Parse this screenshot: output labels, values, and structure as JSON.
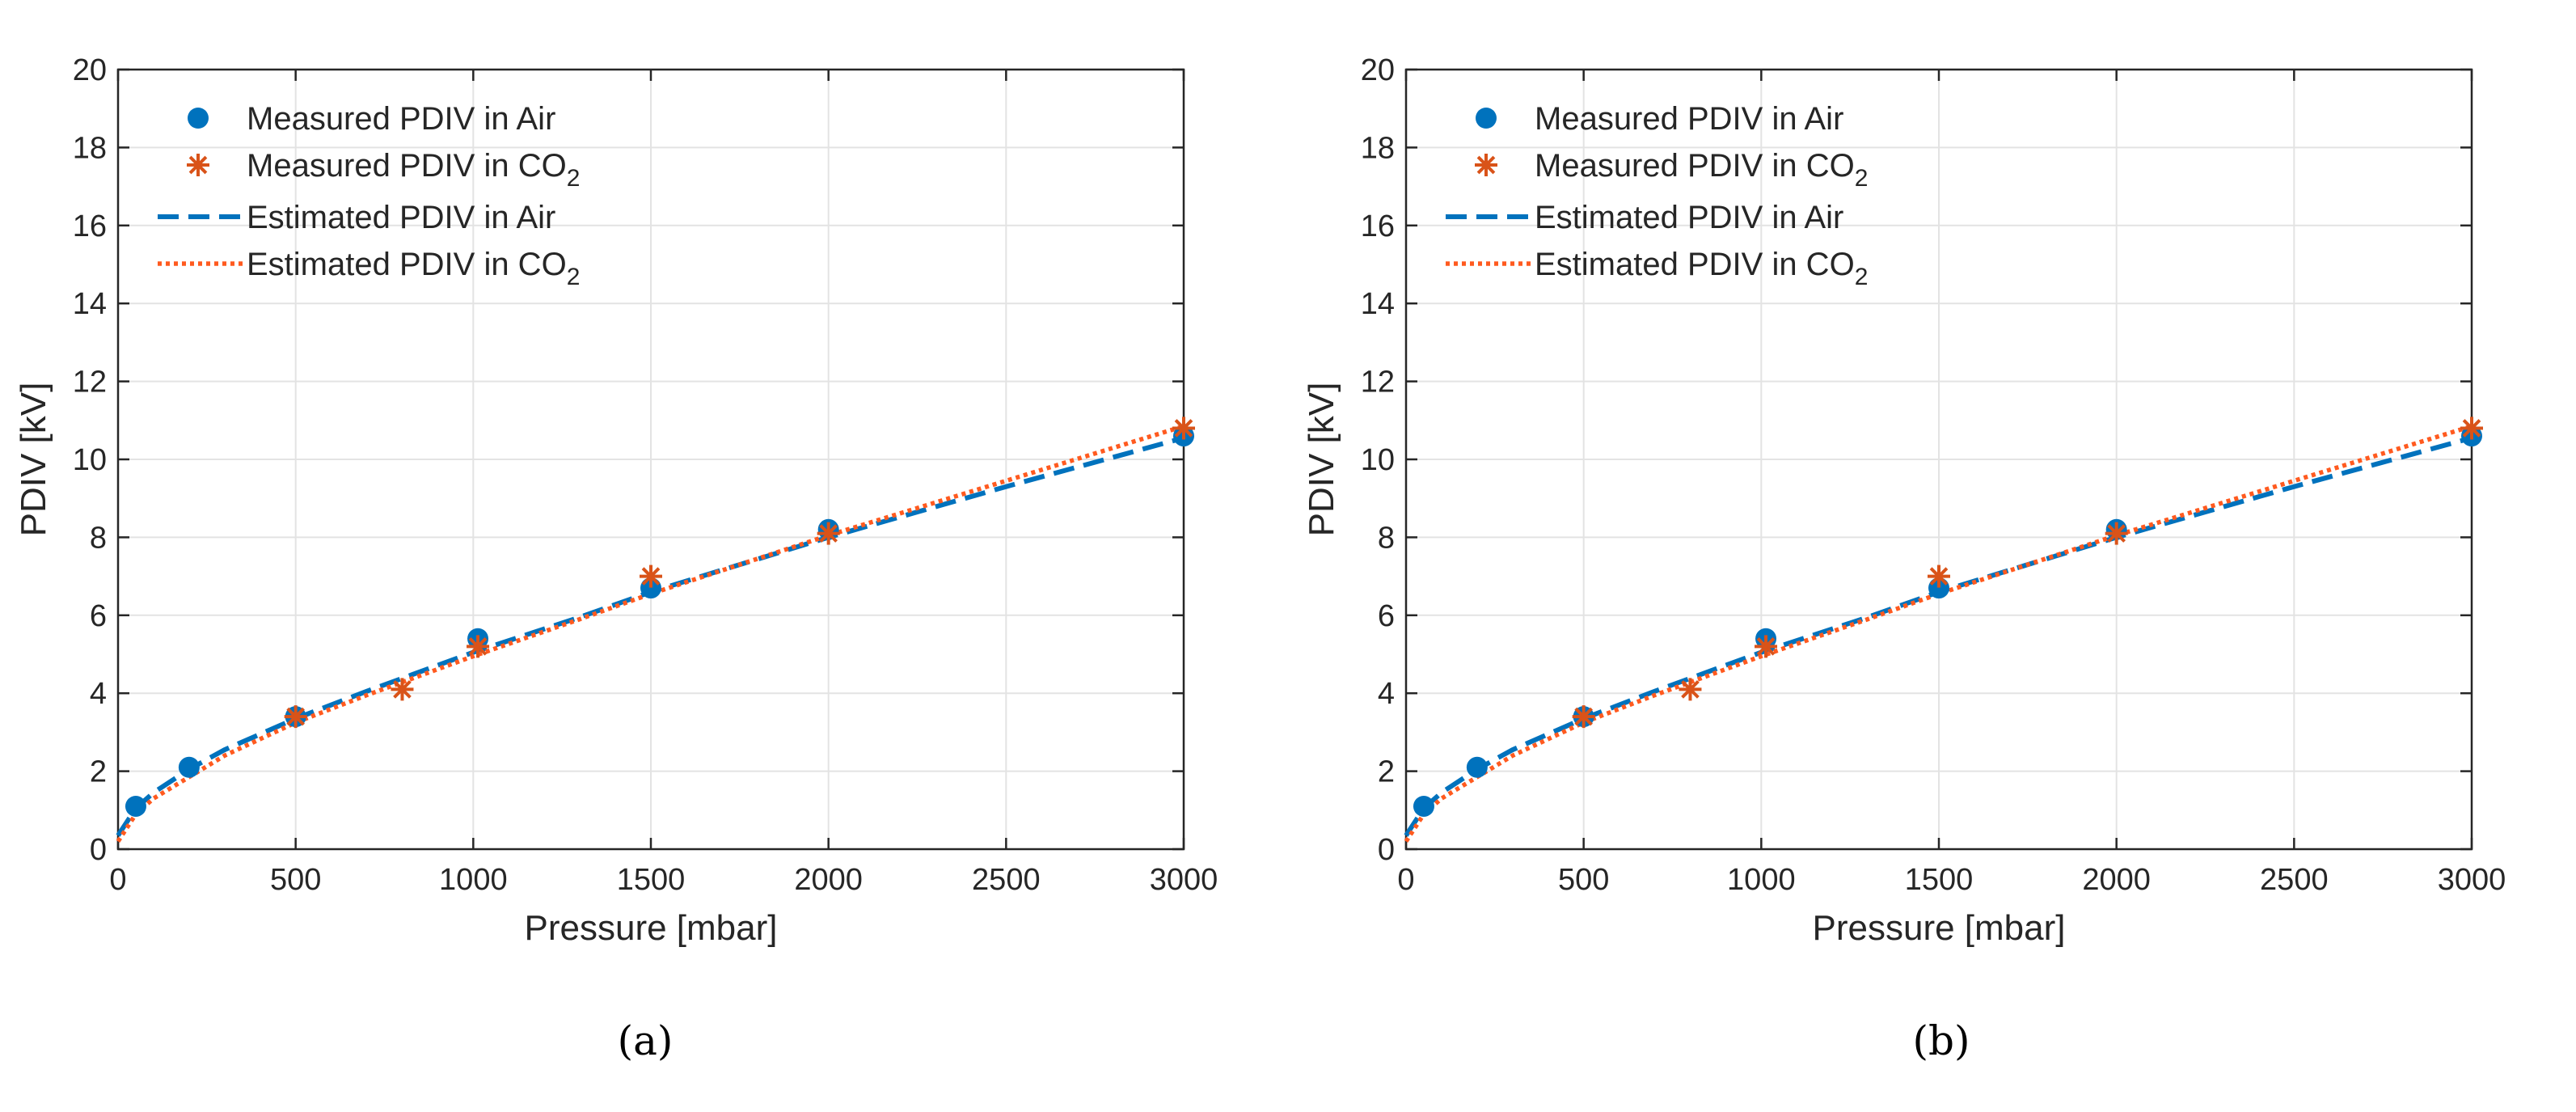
{
  "chart_data": [
    {
      "type": "scatter",
      "panel_label": "(a)",
      "xlabel": "Pressure [mbar]",
      "ylabel": "PDIV [kV]",
      "xlim": [
        0,
        3000
      ],
      "ylim": [
        0,
        20
      ],
      "xticks": [
        0,
        500,
        1000,
        1500,
        2000,
        2500,
        3000
      ],
      "yticks": [
        0,
        2,
        4,
        6,
        8,
        10,
        12,
        14,
        16,
        18,
        20
      ],
      "grid": true,
      "legend_position": "top-left",
      "series": [
        {
          "name": "Measured PDIV in Air",
          "name_sub": "",
          "kind": "marker-dot",
          "color": "#0072BD",
          "x": [
            50,
            200,
            500,
            1013,
            1500,
            2000,
            3000
          ],
          "y": [
            1.1,
            2.1,
            3.4,
            5.4,
            6.7,
            8.2,
            10.6
          ]
        },
        {
          "name": "Measured PDIV in CO",
          "name_sub": "2",
          "kind": "marker-star",
          "color": "#D95319",
          "x": [
            500,
            800,
            1013,
            1500,
            2000,
            3000
          ],
          "y": [
            3.4,
            4.1,
            5.2,
            7.0,
            8.1,
            10.8
          ]
        },
        {
          "name": "Estimated PDIV in Air",
          "name_sub": "",
          "kind": "dashed-line",
          "color": "#0072BD",
          "x": [
            0,
            50,
            100,
            200,
            300,
            500,
            700,
            1000,
            1300,
            1500,
            2000,
            2500,
            3000
          ],
          "y": [
            0.35,
            1.05,
            1.45,
            2.05,
            2.55,
            3.35,
            4.05,
            5.05,
            5.95,
            6.6,
            8.0,
            9.3,
            10.55
          ]
        },
        {
          "name": "Estimated PDIV in CO",
          "name_sub": "2",
          "kind": "dotted-line",
          "color": "#FF5A1F",
          "x": [
            0,
            50,
            100,
            200,
            300,
            500,
            700,
            1000,
            1300,
            1500,
            2000,
            2500,
            3000
          ],
          "y": [
            0.2,
            0.9,
            1.3,
            1.85,
            2.4,
            3.25,
            3.95,
            4.95,
            5.9,
            6.55,
            8.05,
            9.45,
            10.85
          ]
        }
      ]
    },
    {
      "type": "scatter",
      "panel_label": "(b)",
      "xlabel": "Pressure [mbar]",
      "ylabel": "PDIV [kV]",
      "xlim": [
        0,
        3000
      ],
      "ylim": [
        0,
        20
      ],
      "xticks": [
        0,
        500,
        1000,
        1500,
        2000,
        2500,
        3000
      ],
      "yticks": [
        0,
        2,
        4,
        6,
        8,
        10,
        12,
        14,
        16,
        18,
        20
      ],
      "grid": true,
      "legend_position": "top-left",
      "series": [
        {
          "name": "Measured PDIV in Air",
          "name_sub": "",
          "kind": "marker-dot",
          "color": "#0072BD",
          "x": [
            50,
            200,
            500,
            1013,
            1500,
            2000,
            3000
          ],
          "y": [
            1.1,
            2.1,
            3.4,
            5.4,
            6.7,
            8.2,
            10.6
          ]
        },
        {
          "name": "Measured PDIV in CO",
          "name_sub": "2",
          "kind": "marker-star",
          "color": "#D95319",
          "x": [
            500,
            800,
            1013,
            1500,
            2000,
            3000
          ],
          "y": [
            3.4,
            4.1,
            5.2,
            7.0,
            8.1,
            10.8
          ]
        },
        {
          "name": "Estimated PDIV in Air",
          "name_sub": "",
          "kind": "dashed-line",
          "color": "#0072BD",
          "x": [
            0,
            50,
            100,
            200,
            300,
            500,
            700,
            1000,
            1300,
            1500,
            2000,
            2500,
            3000
          ],
          "y": [
            0.35,
            1.05,
            1.45,
            2.05,
            2.55,
            3.35,
            4.05,
            5.05,
            5.95,
            6.6,
            8.0,
            9.3,
            10.55
          ]
        },
        {
          "name": "Estimated PDIV in CO",
          "name_sub": "2",
          "kind": "dotted-line",
          "color": "#FF5A1F",
          "x": [
            0,
            50,
            100,
            200,
            300,
            500,
            700,
            1000,
            1300,
            1500,
            2000,
            2500,
            3000
          ],
          "y": [
            0.2,
            0.9,
            1.3,
            1.85,
            2.4,
            3.25,
            3.95,
            4.95,
            5.9,
            6.55,
            8.05,
            9.45,
            10.85
          ]
        }
      ]
    }
  ]
}
